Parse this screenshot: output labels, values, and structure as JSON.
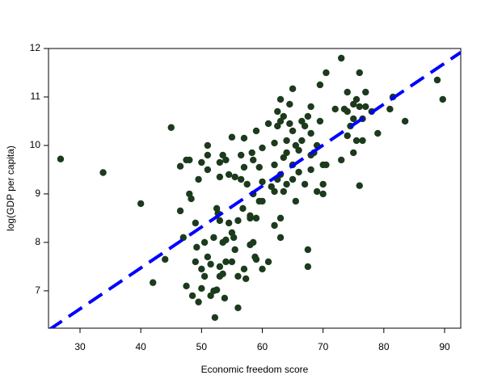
{
  "chart_data": {
    "type": "scatter",
    "x_label": "Economic freedom score",
    "y_label": "log(GDP per capita)",
    "color": "#1c3a1c",
    "x": [
      26.8,
      33.8,
      40,
      42,
      44,
      45,
      46.5,
      46.5,
      47,
      47.5,
      47.5,
      48,
      48,
      48.3,
      48.5,
      49,
      49,
      49.2,
      49.5,
      49.5,
      50,
      50,
      50,
      50.5,
      50.5,
      51,
      51,
      51,
      51,
      51.5,
      51.5,
      52,
      52,
      52.2,
      52.5,
      52.5,
      52.7,
      53,
      53,
      53,
      53,
      53,
      53.5,
      53.5,
      53.5,
      53.8,
      54,
      54,
      54,
      54.5,
      54.5,
      55,
      55,
      55,
      55.3,
      55.5,
      55.5,
      56,
      56,
      56,
      56.5,
      56.5,
      56.8,
      57,
      57,
      57,
      57.3,
      57.5,
      58,
      58,
      58,
      58.3,
      58.5,
      58.5,
      58.5,
      58.8,
      59,
      59,
      59,
      59.5,
      59.5,
      60,
      60,
      60,
      60,
      61,
      61,
      61.5,
      62,
      62,
      62,
      62,
      62.5,
      62.5,
      62.5,
      63,
      63,
      63,
      63,
      63,
      63.5,
      63.5,
      63.5,
      64,
      64,
      64,
      64.5,
      64.5,
      65,
      65,
      65,
      65,
      65.5,
      65.5,
      66,
      66,
      66.5,
      66.5,
      67,
      67,
      67.5,
      67.5,
      67.5,
      68,
      68,
      68,
      68,
      68.5,
      69,
      69,
      69.5,
      69.5,
      70,
      70,
      70,
      70.5,
      70.5,
      72,
      73,
      73,
      73.5,
      74,
      74,
      74,
      74.5,
      75,
      75,
      75,
      75.5,
      75.5,
      76,
      76,
      76,
      76.5,
      76.5,
      77,
      77,
      78,
      79,
      81,
      81.5,
      83.5,
      88.8,
      89.7
    ],
    "values": [
      9.72,
      9.44,
      8.8,
      7.17,
      7.65,
      10.37,
      9.57,
      8.65,
      8.1,
      9.7,
      7.1,
      9.0,
      9.7,
      8.9,
      6.9,
      7.6,
      8.4,
      7.9,
      9.3,
      6.77,
      9.65,
      7.45,
      7.05,
      8.0,
      7.3,
      10.0,
      9.8,
      9.5,
      7.7,
      7.55,
      6.9,
      8.1,
      7.0,
      6.45,
      8.7,
      7.02,
      8.6,
      9.65,
      9.35,
      8.45,
      7.5,
      7.3,
      9.8,
      8.0,
      7.35,
      6.85,
      9.7,
      8.05,
      7.6,
      8.4,
      9.4,
      10.17,
      8.2,
      7.6,
      8.1,
      9.35,
      7.85,
      8.45,
      7.3,
      6.65,
      9.8,
      9.3,
      8.7,
      10.15,
      9.55,
      7.45,
      7.25,
      9.2,
      8.55,
      7.95,
      8.5,
      9.85,
      9.7,
      9.0,
      8.0,
      7.7,
      10.3,
      8.5,
      7.65,
      9.55,
      8.85,
      9.95,
      9.25,
      8.85,
      7.45,
      10.45,
      7.6,
      9.15,
      10.05,
      9.6,
      9.05,
      8.35,
      10.7,
      10.4,
      9.3,
      10.95,
      10.5,
      9.4,
      8.5,
      8.1,
      10.6,
      9.75,
      9.05,
      10.1,
      9.85,
      9.2,
      10.85,
      10.45,
      11.17,
      10.3,
      9.6,
      9.3,
      10.0,
      8.85,
      9.9,
      9.45,
      10.5,
      10.1,
      10.4,
      9.2,
      10.6,
      7.85,
      7.5,
      10.8,
      10.25,
      9.8,
      9.5,
      9.85,
      10.0,
      9.05,
      10.5,
      11.25,
      9.6,
      9.0,
      9.2,
      11.5,
      9.6,
      10.75,
      11.8,
      9.7,
      10.75,
      11.1,
      10.7,
      10.2,
      10.4,
      10.85,
      10.55,
      9.85,
      10.95,
      10.1,
      11.5,
      10.8,
      9.17,
      10.55,
      10.1,
      11.1,
      10.8,
      10.7,
      10.25,
      10.75,
      11.0,
      10.5,
      11.35,
      10.95
    ],
    "trend": {
      "x": [
        24.81,
        92.66
      ],
      "values": [
        6.19,
        11.92
      ],
      "color": "#0000ff"
    },
    "xlim": [
      24.81,
      92.66
    ],
    "ylim": [
      6.23,
      12
    ],
    "xticks": [
      30,
      40,
      50,
      60,
      70,
      80,
      90
    ],
    "yticks": [
      7,
      8,
      9,
      10,
      11,
      12
    ]
  }
}
